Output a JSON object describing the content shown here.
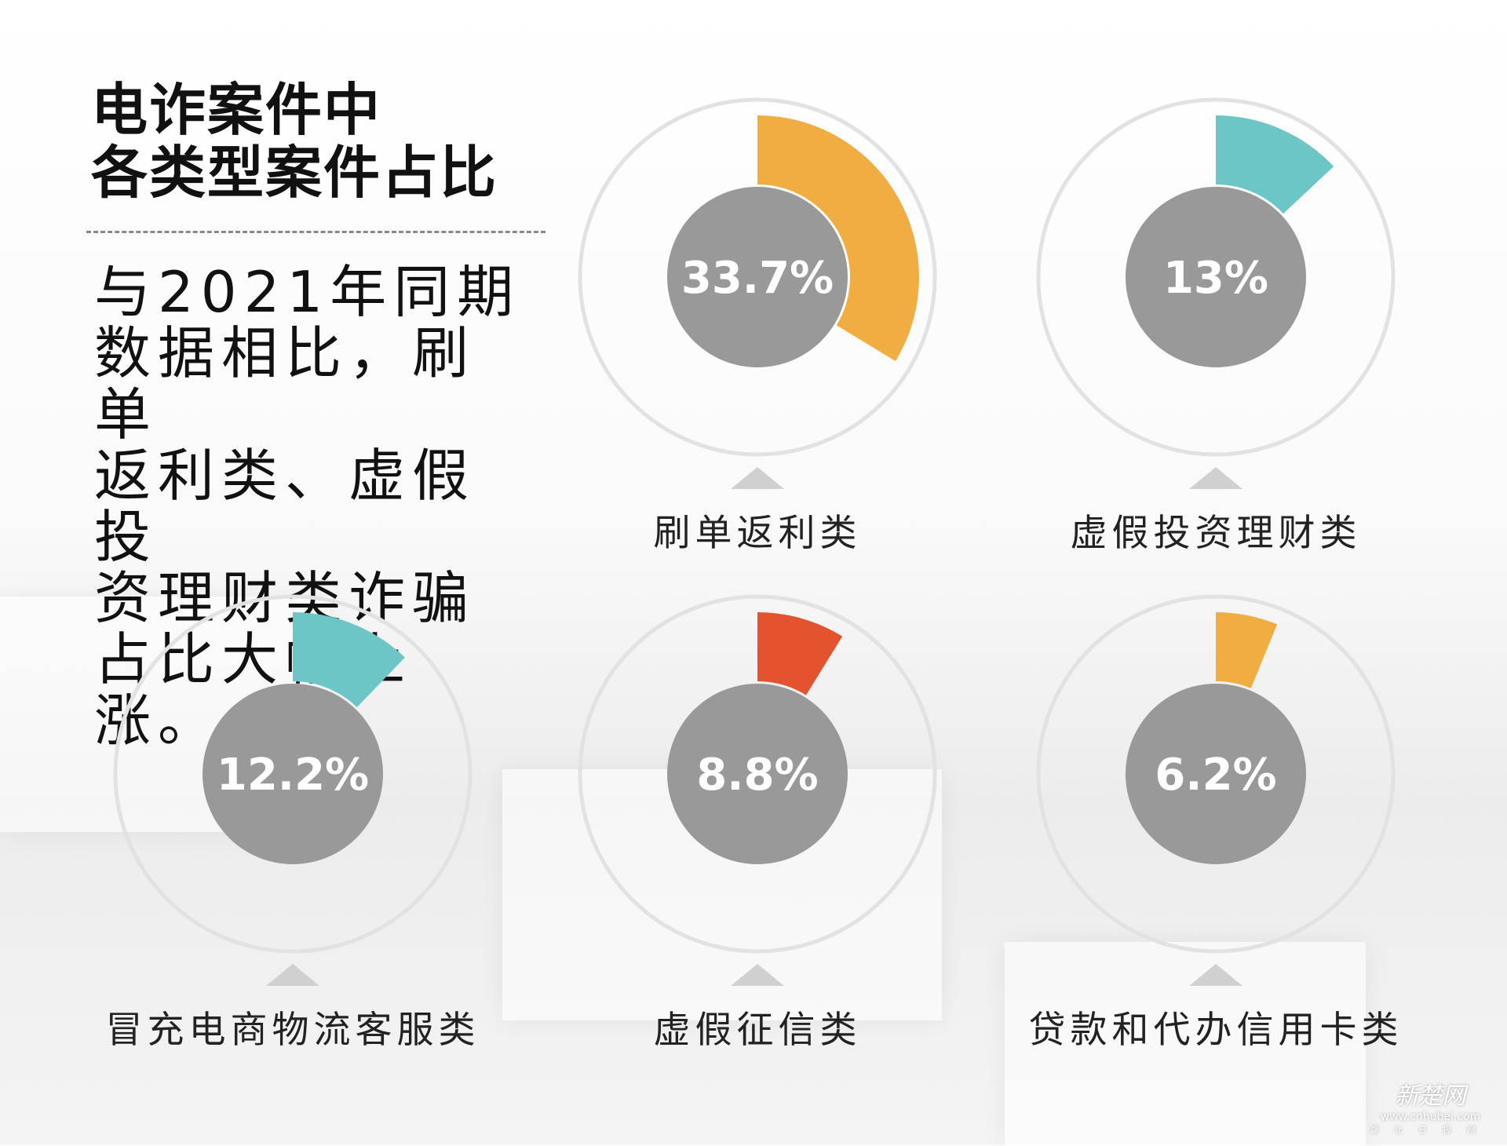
{
  "title": {
    "line1": "电诈案件中",
    "line2": "各类型案件占比"
  },
  "paragraph": {
    "lines": [
      "与2021年同期",
      "数据相比，刷单",
      "返利类、虚假投",
      "资理财类诈骗",
      "占比大幅上涨。"
    ]
  },
  "chart_data": {
    "type": "pie",
    "title": "电诈案件中各类型案件占比",
    "categories": [
      "刷单返利类",
      "虚假投资理财类",
      "冒充电商物流客服类",
      "虚假征信类",
      "贷款和代办信用卡类"
    ],
    "values": [
      33.7,
      13,
      12.2,
      8.8,
      6.2
    ],
    "labels": [
      "33.7%",
      "13%",
      "12.2%",
      "8.8%",
      "6.2%"
    ],
    "colors": [
      "#F0AE42",
      "#6CC6C6",
      "#6CC6C6",
      "#E4532F",
      "#F0AE42"
    ],
    "unit": "%"
  },
  "watermark": {
    "name": "新楚网",
    "url": "www.cnhubei.com",
    "sub": "湖北日报网"
  }
}
